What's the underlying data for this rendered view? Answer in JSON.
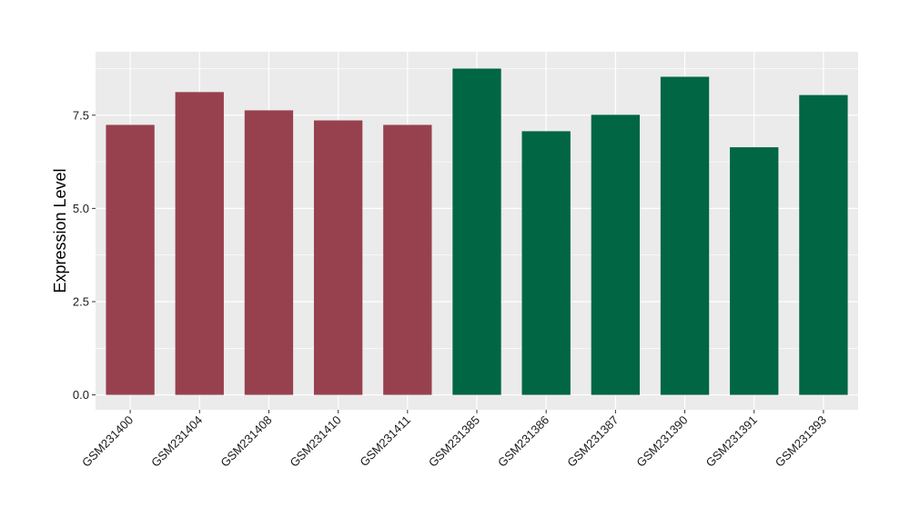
{
  "chart_data": {
    "type": "bar",
    "title": "",
    "xlabel": "",
    "ylabel": "Expression Level",
    "ylim": [
      -0.4,
      9.2
    ],
    "yticks": [
      0.0,
      2.5,
      5.0,
      7.5
    ],
    "ytick_labels": [
      "0.0",
      "2.5",
      "5.0",
      "7.5"
    ],
    "grid": true,
    "legend": "none",
    "categories": [
      "GSM231400",
      "GSM231404",
      "GSM231408",
      "GSM231410",
      "GSM231411",
      "GSM231385",
      "GSM231386",
      "GSM231387",
      "GSM231390",
      "GSM231391",
      "GSM231393"
    ],
    "values": [
      7.24,
      8.12,
      7.63,
      7.36,
      7.24,
      8.75,
      7.07,
      7.51,
      8.53,
      6.64,
      8.04
    ],
    "bar_colors": [
      "#98414e",
      "#98414e",
      "#98414e",
      "#98414e",
      "#98414e",
      "#016644",
      "#016644",
      "#016644",
      "#016644",
      "#016644",
      "#016644"
    ],
    "panel_background": "#ebebeb",
    "gridline_color": "#ffffff"
  }
}
